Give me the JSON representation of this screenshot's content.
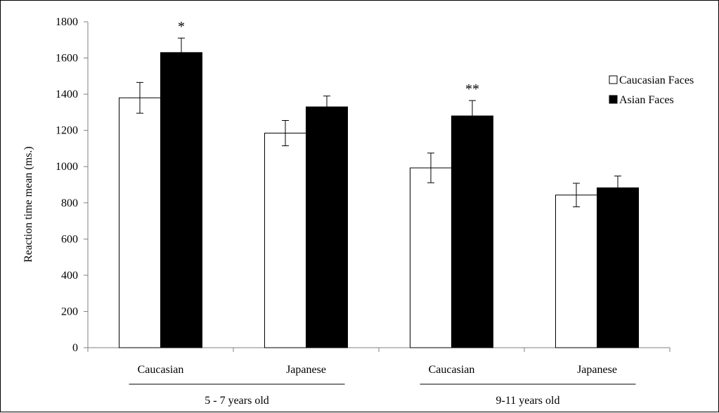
{
  "chart_data": {
    "type": "bar",
    "title": "",
    "xlabel": "",
    "ylabel": "Reaction time mean  (ms.)",
    "ylim": [
      0,
      1800
    ],
    "yticks": [
      0,
      200,
      400,
      600,
      800,
      1000,
      1200,
      1400,
      1600,
      1800
    ],
    "grid": false,
    "legend_position": "right",
    "categories": [
      "Caucasian",
      "Japanese",
      "Caucasian",
      "Japanese"
    ],
    "groups": [
      {
        "label": "5 - 7 years old",
        "categories": [
          0,
          1
        ]
      },
      {
        "label": "9-11 years old",
        "categories": [
          2,
          3
        ]
      }
    ],
    "series": [
      {
        "name": "Caucasian Faces",
        "color": "#ffffff",
        "values": [
          1380,
          1185,
          993,
          843
        ],
        "errors": [
          85,
          70,
          82,
          65
        ]
      },
      {
        "name": "Asian Faces",
        "color": "#000000",
        "values": [
          1630,
          1330,
          1280,
          883
        ],
        "errors": [
          80,
          60,
          85,
          65
        ]
      }
    ],
    "annotations": [
      {
        "text": "*",
        "category": 0,
        "series": 1
      },
      {
        "text": "**",
        "category": 2,
        "series": 1
      }
    ]
  }
}
